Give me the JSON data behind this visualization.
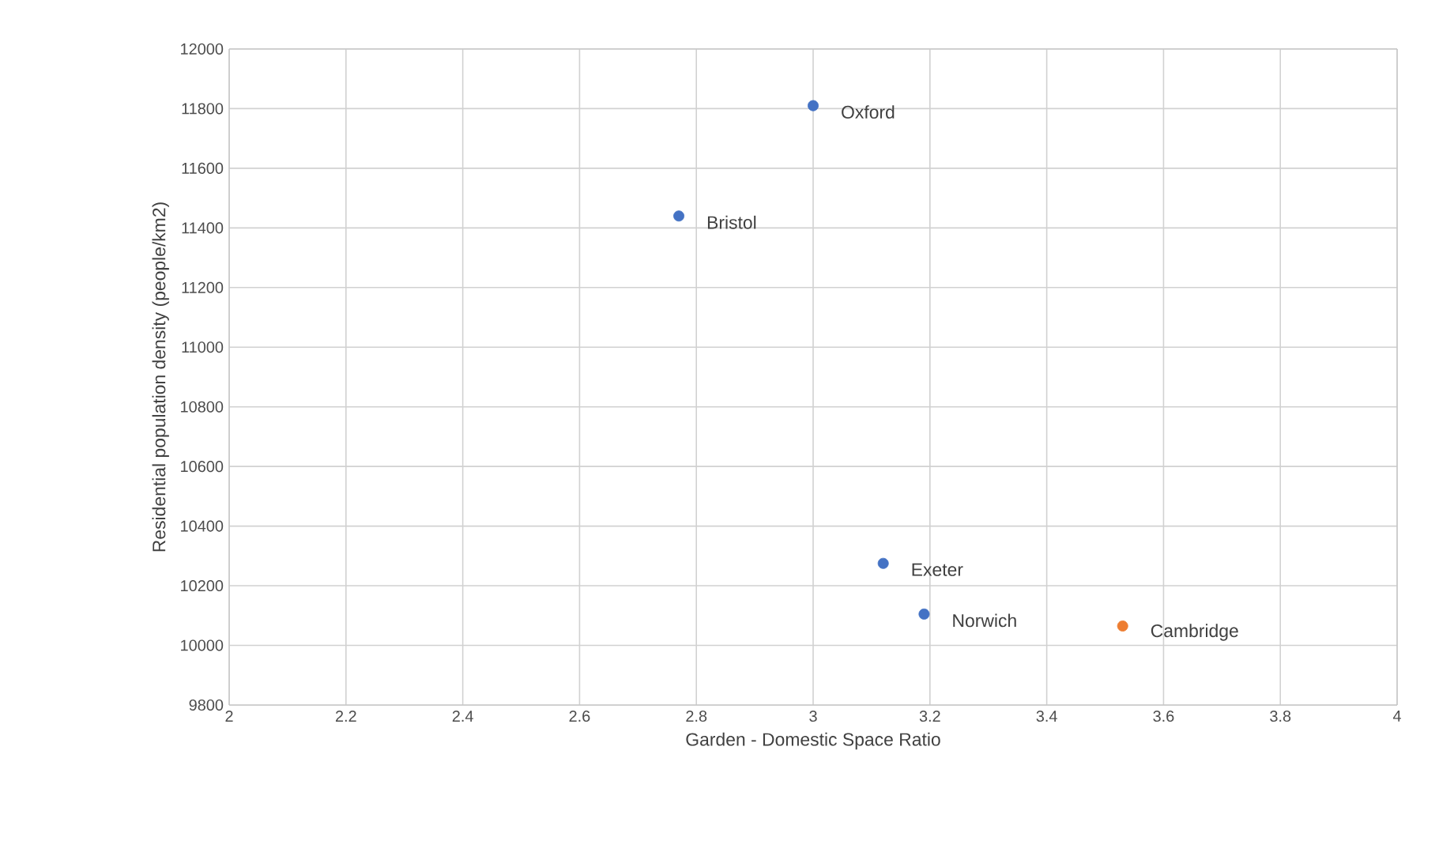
{
  "chart_data": {
    "type": "scatter",
    "xlabel": "Garden - Domestic Space Ratio",
    "ylabel": "Residential population density (people/km2)",
    "xlim": [
      2,
      4
    ],
    "xticks": [
      2,
      2.2,
      2.4,
      2.6,
      2.8,
      3,
      3.2,
      3.4,
      3.6,
      3.8,
      4
    ],
    "ylim": [
      9800,
      12000
    ],
    "yticks": [
      9800,
      10000,
      10200,
      10400,
      10600,
      10800,
      11000,
      11200,
      11400,
      11600,
      11800,
      12000
    ],
    "grid": true,
    "marker": "circle",
    "series": [
      {
        "color": "#4472c4",
        "x": [
          3.0,
          2.77,
          3.12,
          3.19
        ],
        "values": [
          11810,
          11440,
          10275,
          10105
        ]
      },
      {
        "color": "#ed7d31",
        "x": [
          3.53
        ],
        "values": [
          10065
        ]
      }
    ],
    "annotations": [
      {
        "text": "Oxford",
        "x": 3.0,
        "y": 11810
      },
      {
        "text": "Bristol",
        "x": 2.77,
        "y": 11440
      },
      {
        "text": "Exeter",
        "x": 3.12,
        "y": 10275
      },
      {
        "text": "Norwich",
        "x": 3.19,
        "y": 10105
      },
      {
        "text": "Cambridge",
        "x": 3.53,
        "y": 10065
      }
    ]
  }
}
